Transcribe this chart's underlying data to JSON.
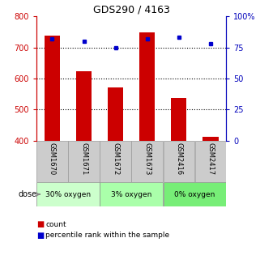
{
  "title": "GDS290 / 4163",
  "samples": [
    "GSM1670",
    "GSM1671",
    "GSM1672",
    "GSM1673",
    "GSM2416",
    "GSM2417"
  ],
  "counts": [
    737,
    622,
    570,
    748,
    537,
    413
  ],
  "percentiles": [
    82,
    80,
    75,
    82,
    83,
    78
  ],
  "ylim_left": [
    400,
    800
  ],
  "ylim_right": [
    0,
    100
  ],
  "yticks_left": [
    400,
    500,
    600,
    700,
    800
  ],
  "yticks_right": [
    0,
    25,
    50,
    75,
    100
  ],
  "bar_color": "#cc0000",
  "dot_color": "#0000cc",
  "bar_bottom": 400,
  "group_labels": [
    "30% oxygen",
    "3% oxygen",
    "0% oxygen"
  ],
  "group_colors": [
    "#ccffcc",
    "#aaffaa",
    "#77ee77"
  ],
  "dose_label": "dose",
  "legend_count_label": "count",
  "legend_pct_label": "percentile rank within the sample",
  "left_axis_color": "#cc0000",
  "right_axis_color": "#0000bb",
  "gsm_bg_color": "#cccccc",
  "gridline_yticks": [
    500,
    600,
    700
  ]
}
